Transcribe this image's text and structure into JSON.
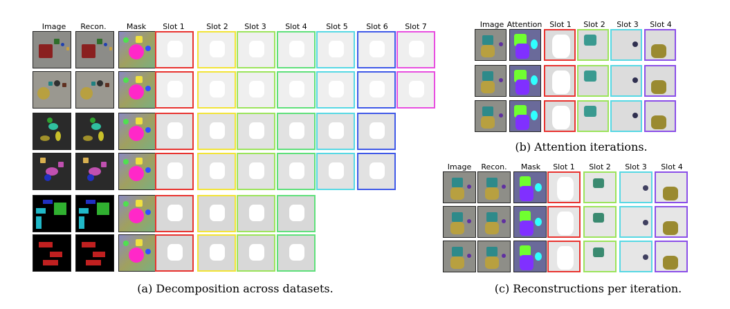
{
  "panel_a": {
    "headers": [
      "Image",
      "Recon.",
      "Mask",
      "Slot 1",
      "Slot 2",
      "Slot 3",
      "Slot 4",
      "Slot 5",
      "Slot 6",
      "Slot 7"
    ],
    "caption": "(a) Decomposition across datasets."
  },
  "panel_b": {
    "headers": [
      "Image",
      "Attention",
      "Slot 1",
      "Slot 2",
      "Slot 3",
      "Slot 4"
    ],
    "caption": "(b) Attention iterations."
  },
  "panel_c": {
    "headers": [
      "Image",
      "Recon.",
      "Mask",
      "Slot 1",
      "Slot 2",
      "Slot 3",
      "Slot 4"
    ],
    "caption": "(c) Reconstructions per iteration."
  },
  "slot_colors": {
    "slot1": "#e8322e",
    "slot2": "#f2e436",
    "slot3": "#9be45a",
    "slot4": "#5ee07a",
    "slot5": "#56d8e4",
    "slot6": "#3e58e8",
    "slot7": "#e84ee0",
    "slot_b4": "#8a4ee8"
  }
}
